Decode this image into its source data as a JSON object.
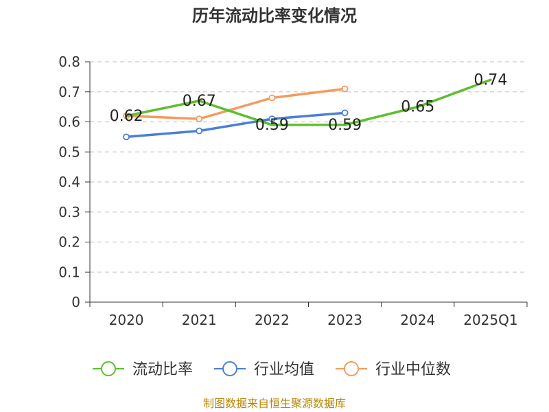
{
  "chart_data": {
    "type": "line",
    "title": "历年流动比率变化情况",
    "categories": [
      "2020",
      "2021",
      "2022",
      "2023",
      "2024",
      "2025Q1"
    ],
    "ylim": [
      0,
      0.8
    ],
    "yticks": [
      "0",
      "0.1",
      "0.2",
      "0.3",
      "0.4",
      "0.5",
      "0.6",
      "0.7",
      "0.8"
    ],
    "grid": true,
    "legend_position": "bottom",
    "series": [
      {
        "name": "流动比率",
        "color": "#5dbf2a",
        "values": [
          0.62,
          0.67,
          0.59,
          0.59,
          0.65,
          0.74
        ],
        "data_labels": [
          "0.62",
          "0.67",
          "0.59",
          "0.59",
          "0.65",
          "0.74"
        ],
        "markers": false
      },
      {
        "name": "行业均值",
        "color": "#4a7fd6",
        "values": [
          0.55,
          0.57,
          0.61,
          0.63,
          null,
          null
        ],
        "markers": true
      },
      {
        "name": "行业中位数",
        "color": "#f59a5e",
        "values": [
          0.62,
          0.61,
          0.68,
          0.71,
          null,
          null
        ],
        "markers": true
      }
    ]
  },
  "source": "制图数据来自恒生聚源数据库"
}
